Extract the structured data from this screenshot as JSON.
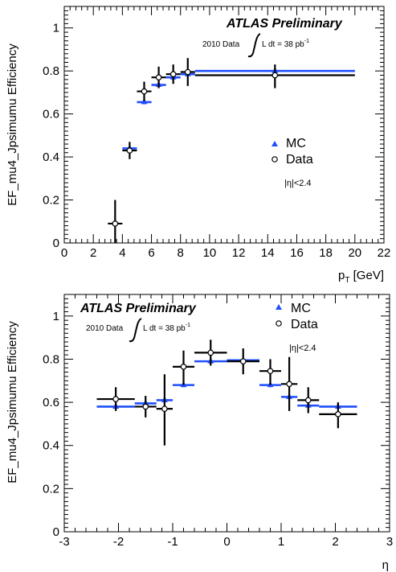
{
  "chart_data": [
    {
      "type": "scatter",
      "title": "",
      "ylabel": "EF_mu4_Jpsimumu Efficiency",
      "xlabel": {
        "main": "p",
        "sub": "T",
        "unit": " [GeV]"
      },
      "xlim": [
        0,
        22
      ],
      "ylim": [
        0,
        1.1
      ],
      "xticks": [
        0,
        2,
        4,
        6,
        8,
        10,
        12,
        14,
        16,
        18,
        20,
        22
      ],
      "xtick_labels": [
        "0",
        "2",
        "4",
        "6",
        "8",
        "10",
        "12",
        "14",
        "16",
        "18",
        "20",
        "22"
      ],
      "yticks": [
        0,
        0.2,
        0.4,
        0.6,
        0.8,
        1
      ],
      "ytick_labels": [
        "0",
        "0.2",
        "0.4",
        "0.6",
        "0.8",
        "1"
      ],
      "grid": false,
      "annotations": {
        "atlas": "ATLAS Preliminary",
        "data_prefix": "2010 Data",
        "lumi": "L dt = 38 pb",
        "lumi_sup": "-1",
        "eta_cut": "|η|<2.4"
      },
      "legend": {
        "placement": "right",
        "mc_label": "MC",
        "data_label": "Data"
      },
      "colors": {
        "mc": "#1f4fff",
        "data": "#000000"
      },
      "series": [
        {
          "name": "MC",
          "marker": "triangle",
          "points": [
            {
              "x": 4.5,
              "xlo": 4,
              "xhi": 5,
              "y": 0.44,
              "ylo": 0.43,
              "yhi": 0.45
            },
            {
              "x": 5.5,
              "xlo": 5,
              "xhi": 6,
              "y": 0.655,
              "ylo": 0.645,
              "yhi": 0.665
            },
            {
              "x": 6.5,
              "xlo": 6,
              "xhi": 7,
              "y": 0.735,
              "ylo": 0.725,
              "yhi": 0.745
            },
            {
              "x": 7.5,
              "xlo": 7,
              "xhi": 8,
              "y": 0.77,
              "ylo": 0.76,
              "yhi": 0.78
            },
            {
              "x": 8.5,
              "xlo": 8,
              "xhi": 9,
              "y": 0.785,
              "ylo": 0.775,
              "yhi": 0.795
            },
            {
              "x": 14.5,
              "xlo": 9,
              "xhi": 20,
              "y": 0.8,
              "ylo": 0.795,
              "yhi": 0.805
            }
          ]
        },
        {
          "name": "Data",
          "marker": "open-circle",
          "points": [
            {
              "x": 3.5,
              "xlo": 3,
              "xhi": 4,
              "y": 0.09,
              "ylo": -0.02,
              "yhi": 0.2
            },
            {
              "x": 4.5,
              "xlo": 4,
              "xhi": 5,
              "y": 0.43,
              "ylo": 0.39,
              "yhi": 0.47
            },
            {
              "x": 5.5,
              "xlo": 5,
              "xhi": 6,
              "y": 0.705,
              "ylo": 0.66,
              "yhi": 0.75
            },
            {
              "x": 6.5,
              "xlo": 6,
              "xhi": 7,
              "y": 0.77,
              "ylo": 0.72,
              "yhi": 0.82
            },
            {
              "x": 7.5,
              "xlo": 7,
              "xhi": 8,
              "y": 0.785,
              "ylo": 0.74,
              "yhi": 0.83
            },
            {
              "x": 8.5,
              "xlo": 8,
              "xhi": 9,
              "y": 0.795,
              "ylo": 0.73,
              "yhi": 0.86
            },
            {
              "x": 14.5,
              "xlo": 9,
              "xhi": 20,
              "y": 0.78,
              "ylo": 0.72,
              "yhi": 0.83
            }
          ]
        }
      ]
    },
    {
      "type": "scatter",
      "title": "",
      "ylabel": "EF_mu4_Jpsimumu Efficiency",
      "xlabel": {
        "main": "η",
        "sub": "",
        "unit": ""
      },
      "xlim": [
        -3,
        3
      ],
      "ylim": [
        0,
        1.1
      ],
      "xticks": [
        -3,
        -2,
        -1,
        0,
        1,
        2,
        3
      ],
      "xtick_labels": [
        "-3",
        "-2",
        "-1",
        "0",
        "1",
        "2",
        "3"
      ],
      "yticks": [
        0,
        0.2,
        0.4,
        0.6,
        0.8,
        1
      ],
      "ytick_labels": [
        "0",
        "0.2",
        "0.4",
        "0.6",
        "0.8",
        "1"
      ],
      "grid": false,
      "annotations": {
        "atlas": "ATLAS Preliminary",
        "data_prefix": "2010 Data",
        "lumi": "L dt = 38 pb",
        "lumi_sup": "-1",
        "eta_cut": "|η|<2.4"
      },
      "legend": {
        "placement": "top-right",
        "mc_label": "MC",
        "data_label": "Data"
      },
      "colors": {
        "mc": "#1f4fff",
        "data": "#000000"
      },
      "series": [
        {
          "name": "MC",
          "marker": "triangle",
          "points": [
            {
              "x": -2.05,
              "xlo": -2.4,
              "xhi": -1.7,
              "y": 0.58,
              "ylo": 0.57,
              "yhi": 0.59
            },
            {
              "x": -1.5,
              "xlo": -1.7,
              "xhi": -1.3,
              "y": 0.595,
              "ylo": 0.585,
              "yhi": 0.605
            },
            {
              "x": -1.15,
              "xlo": -1.3,
              "xhi": -1.0,
              "y": 0.61,
              "ylo": 0.6,
              "yhi": 0.62
            },
            {
              "x": -0.8,
              "xlo": -1.0,
              "xhi": -0.6,
              "y": 0.68,
              "ylo": 0.67,
              "yhi": 0.69
            },
            {
              "x": -0.3,
              "xlo": -0.6,
              "xhi": 0.0,
              "y": 0.79,
              "ylo": 0.78,
              "yhi": 0.8
            },
            {
              "x": 0.3,
              "xlo": 0.0,
              "xhi": 0.6,
              "y": 0.795,
              "ylo": 0.785,
              "yhi": 0.805
            },
            {
              "x": 0.8,
              "xlo": 0.6,
              "xhi": 1.0,
              "y": 0.68,
              "ylo": 0.67,
              "yhi": 0.69
            },
            {
              "x": 1.15,
              "xlo": 1.0,
              "xhi": 1.3,
              "y": 0.625,
              "ylo": 0.615,
              "yhi": 0.635
            },
            {
              "x": 1.5,
              "xlo": 1.3,
              "xhi": 1.7,
              "y": 0.585,
              "ylo": 0.575,
              "yhi": 0.595
            },
            {
              "x": 2.05,
              "xlo": 1.7,
              "xhi": 2.4,
              "y": 0.58,
              "ylo": 0.57,
              "yhi": 0.59
            }
          ]
        },
        {
          "name": "Data",
          "marker": "open-circle",
          "points": [
            {
              "x": -2.05,
              "xlo": -2.4,
              "xhi": -1.7,
              "y": 0.615,
              "ylo": 0.56,
              "yhi": 0.67
            },
            {
              "x": -1.5,
              "xlo": -1.7,
              "xhi": -1.3,
              "y": 0.58,
              "ylo": 0.53,
              "yhi": 0.63
            },
            {
              "x": -1.15,
              "xlo": -1.3,
              "xhi": -1.0,
              "y": 0.57,
              "ylo": 0.4,
              "yhi": 0.73
            },
            {
              "x": -0.8,
              "xlo": -1.0,
              "xhi": -0.6,
              "y": 0.765,
              "ylo": 0.68,
              "yhi": 0.84
            },
            {
              "x": -0.3,
              "xlo": -0.6,
              "xhi": 0.0,
              "y": 0.83,
              "ylo": 0.77,
              "yhi": 0.89
            },
            {
              "x": 0.3,
              "xlo": 0.0,
              "xhi": 0.6,
              "y": 0.79,
              "ylo": 0.73,
              "yhi": 0.85
            },
            {
              "x": 0.8,
              "xlo": 0.6,
              "xhi": 1.0,
              "y": 0.745,
              "ylo": 0.68,
              "yhi": 0.8
            },
            {
              "x": 1.15,
              "xlo": 1.0,
              "xhi": 1.3,
              "y": 0.685,
              "ylo": 0.56,
              "yhi": 0.81
            },
            {
              "x": 1.5,
              "xlo": 1.3,
              "xhi": 1.7,
              "y": 0.61,
              "ylo": 0.55,
              "yhi": 0.67
            },
            {
              "x": 2.05,
              "xlo": 1.7,
              "xhi": 2.4,
              "y": 0.545,
              "ylo": 0.48,
              "yhi": 0.6
            }
          ]
        }
      ]
    }
  ]
}
